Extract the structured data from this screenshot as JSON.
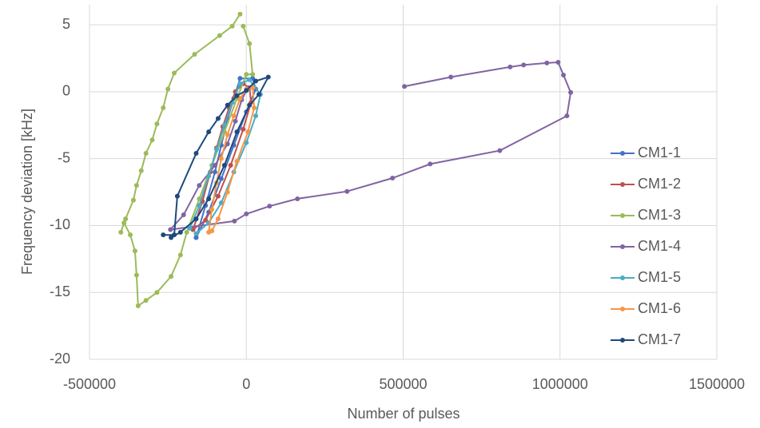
{
  "chart_data": {
    "type": "scatter-line",
    "x_label": "Number of pulses",
    "y_label": "Frequency deviation [kHz]",
    "xlim": [
      -500000,
      1500000
    ],
    "xticks": [
      -500000,
      0,
      500000,
      1000000,
      1500000
    ],
    "ylim": [
      -20,
      6.5
    ],
    "yticks": [
      5,
      0,
      -5,
      -10,
      -15,
      -20
    ],
    "grid": true,
    "legend": "right",
    "series": [
      {
        "name": "CM1-1",
        "color": "#4472c4",
        "x": [
          -160000,
          -130000,
          -100000,
          -80000,
          -60000,
          -40000,
          -20000,
          20000,
          30000,
          0,
          -40000,
          -80000,
          -120000,
          -160000
        ],
        "values": [
          -10.9,
          -8.5,
          -6.0,
          -4.0,
          -2.0,
          -0.5,
          1.0,
          1.0,
          0.2,
          -1.5,
          -4.0,
          -6.5,
          -9.0,
          -10.9
        ]
      },
      {
        "name": "CM1-2",
        "color": "#c0504d",
        "x": [
          -170000,
          -140000,
          -115000,
          -95000,
          -75000,
          -55000,
          -35000,
          -10000,
          10000,
          15000,
          -10000,
          -50000,
          -90000,
          -130000,
          -170000
        ],
        "values": [
          -10.3,
          -8.2,
          -6.0,
          -4.2,
          -2.6,
          -1.2,
          0.0,
          0.6,
          0.3,
          -0.8,
          -2.8,
          -5.5,
          -7.8,
          -9.6,
          -10.3
        ]
      },
      {
        "name": "CM1-3",
        "color": "#9bbb59",
        "x": [
          -20000,
          -45000,
          -85000,
          -165000,
          -230000,
          -250000,
          -265000,
          -285000,
          -300000,
          -320000,
          -335000,
          -350000,
          -360000,
          -385000,
          -400000,
          -390000,
          -370000,
          -355000,
          -350000,
          -345000,
          -320000,
          -285000,
          -240000,
          -210000,
          -190000,
          -150000,
          -110000,
          -70000,
          -30000,
          0,
          20000,
          10000,
          -10000
        ],
        "values": [
          5.8,
          4.9,
          4.2,
          2.8,
          1.4,
          0.2,
          -1.2,
          -2.4,
          -3.6,
          -4.6,
          -5.9,
          -7.0,
          -8.1,
          -9.5,
          -10.5,
          -9.8,
          -10.7,
          -11.9,
          -13.7,
          -16.0,
          -15.6,
          -15.0,
          -13.8,
          -12.2,
          -10.5,
          -8.0,
          -5.5,
          -3.0,
          -0.5,
          1.3,
          1.3,
          3.6,
          4.9
        ]
      },
      {
        "name": "CM1-4",
        "color": "#8064a2",
        "x": [
          504000,
          652000,
          841000,
          884000,
          958000,
          994000,
          1011000,
          1034000,
          1022000,
          808000,
          586000,
          466000,
          321000,
          163000,
          74000,
          0,
          -38000,
          -242000,
          -200000,
          -150000,
          -100000,
          -60000,
          -35000,
          -15000,
          5000
        ],
        "values": [
          0.4,
          1.1,
          1.85,
          2.0,
          2.15,
          2.2,
          1.25,
          -0.05,
          -1.8,
          -4.4,
          -5.4,
          -6.45,
          -7.45,
          -8.0,
          -8.55,
          -9.13,
          -9.67,
          -10.3,
          -9.2,
          -7.0,
          -5.5,
          -3.9,
          -2.2,
          -0.6,
          0.3
        ]
      },
      {
        "name": "CM1-5",
        "color": "#4bacc6",
        "x": [
          -180000,
          -150000,
          -120000,
          -95000,
          -70000,
          -45000,
          -20000,
          10000,
          45000,
          30000,
          0,
          -40000,
          -80000,
          -120000,
          -160000
        ],
        "values": [
          -10.2,
          -8.5,
          -6.3,
          -4.3,
          -2.5,
          -0.8,
          0.6,
          0.9,
          -0.2,
          -1.8,
          -3.8,
          -6.0,
          -8.3,
          -9.8,
          -10.6
        ]
      },
      {
        "name": "CM1-6",
        "color": "#f79646",
        "x": [
          -120000,
          -110000,
          -95000,
          -80000,
          -60000,
          -40000,
          -20000,
          0,
          20000,
          25000,
          5000,
          -30000,
          -60000,
          -90000,
          -110000
        ],
        "values": [
          -10.5,
          -8.8,
          -6.8,
          -5.0,
          -3.2,
          -1.8,
          -0.5,
          0.2,
          0.3,
          -1.2,
          -3.0,
          -5.2,
          -7.5,
          -9.5,
          -10.4
        ]
      },
      {
        "name": "CM1-7",
        "color": "#1f497d",
        "x": [
          -265000,
          -230000,
          -220000,
          -160000,
          -120000,
          -90000,
          -60000,
          -30000,
          0,
          30000,
          70000,
          40000,
          10000,
          -30000,
          -70000,
          -120000,
          -160000,
          -210000,
          -240000
        ],
        "values": [
          -10.7,
          -10.7,
          -7.8,
          -4.6,
          -3.0,
          -2.0,
          -1.0,
          -0.3,
          0.1,
          0.8,
          1.1,
          -0.2,
          -1.0,
          -3.0,
          -5.5,
          -8.0,
          -9.5,
          -10.5,
          -10.9
        ]
      }
    ]
  }
}
